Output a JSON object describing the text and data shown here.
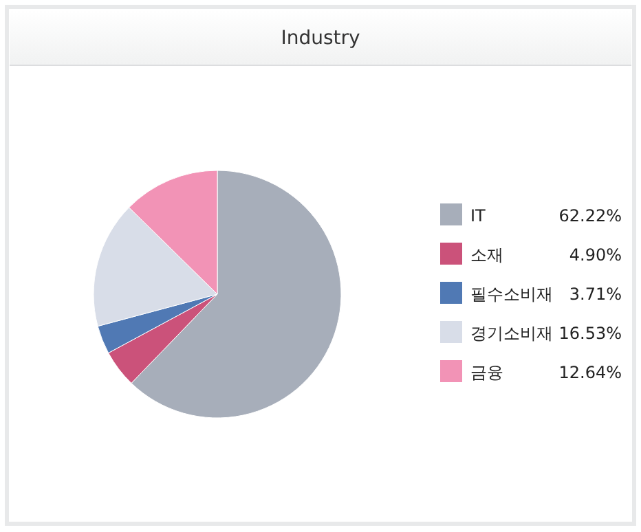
{
  "chart_data": {
    "type": "pie",
    "title": "Industry",
    "categories": [
      "IT",
      "소재",
      "필수소비재",
      "경기소비재",
      "금융"
    ],
    "values": [
      62.22,
      4.9,
      3.71,
      16.53,
      12.64
    ],
    "value_labels": [
      "62.22%",
      "4.90%",
      "3.71%",
      "16.53%",
      "12.64%"
    ],
    "colors": [
      "#a7aeba",
      "#cb527a",
      "#5079b4",
      "#d8dde8",
      "#f293b6"
    ],
    "legend": "right"
  }
}
